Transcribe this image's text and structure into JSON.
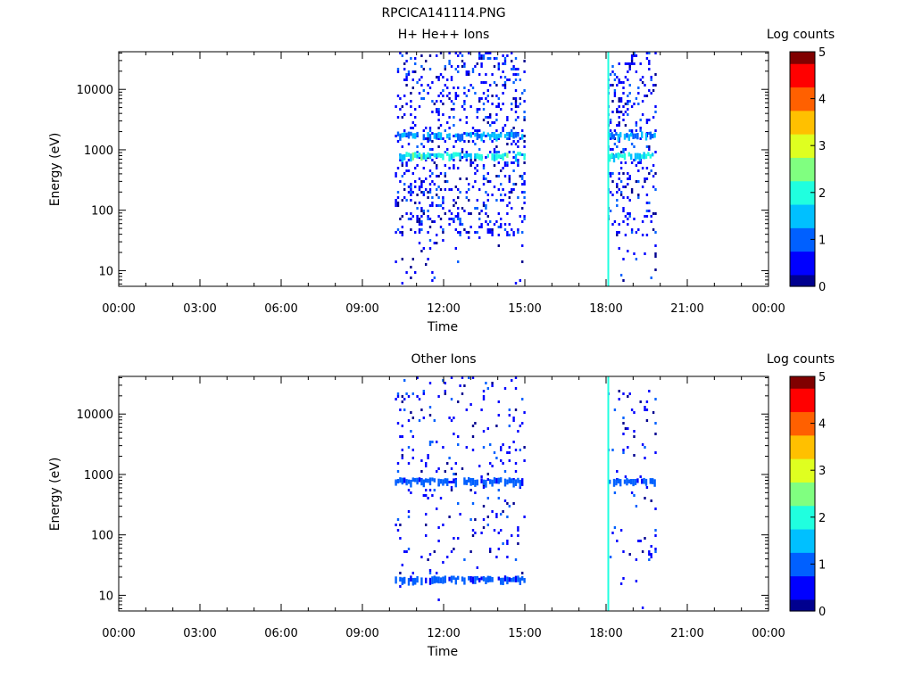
{
  "figure_title": "RPCICA141114.PNG",
  "colors": {
    "colormap": [
      "#00008f",
      "#0000ff",
      "#0060ff",
      "#00c0ff",
      "#20ffdf",
      "#80ff80",
      "#dfff20",
      "#ffc000",
      "#ff6000",
      "#ff0000",
      "#800000"
    ],
    "axes": "#000000",
    "background": "#ffffff"
  },
  "chart_data": [
    {
      "type": "heatmap",
      "title": "H+ He++ Ions",
      "xlabel": "Time",
      "ylabel": "Energy (eV)",
      "x_ticks": [
        "00:00",
        "03:00",
        "06:00",
        "09:00",
        "12:00",
        "15:00",
        "18:00",
        "21:00",
        "00:00"
      ],
      "xlim_hours": [
        0,
        24
      ],
      "y_ticks": [
        "10",
        "100",
        "1000",
        "10000"
      ],
      "y_scale": "log",
      "ylim_eV": [
        5.5,
        42000
      ],
      "colorbar": {
        "label": "Log counts",
        "ticks": [
          "0",
          "1",
          "2",
          "3",
          "4",
          "5"
        ],
        "range": [
          0,
          5
        ]
      },
      "data_intervals_hours": [
        [
          10.2,
          14.95
        ],
        [
          18.05,
          19.85
        ]
      ],
      "bands": [
        {
          "energy_eV": 1700,
          "level": 1.4,
          "intervals_hours": [
            [
              10.2,
              14.95
            ],
            [
              18.1,
              19.8
            ]
          ]
        },
        {
          "energy_eV": 780,
          "level": 1.9,
          "intervals_hours": [
            [
              10.2,
              14.95
            ],
            [
              18.1,
              19.8
            ]
          ]
        }
      ],
      "spikes": [
        {
          "time_hours": 18.05,
          "level": 1.8,
          "energy_range_eV": [
            5.5,
            42000
          ]
        }
      ],
      "scatter_density": 0.16
    },
    {
      "type": "heatmap",
      "title": "Other Ions",
      "xlabel": "Time",
      "ylabel": "Energy (eV)",
      "x_ticks": [
        "00:00",
        "03:00",
        "06:00",
        "09:00",
        "12:00",
        "15:00",
        "18:00",
        "21:00",
        "00:00"
      ],
      "xlim_hours": [
        0,
        24
      ],
      "y_ticks": [
        "10",
        "100",
        "1000",
        "10000"
      ],
      "y_scale": "log",
      "ylim_eV": [
        5.5,
        42000
      ],
      "colorbar": {
        "label": "Log counts",
        "ticks": [
          "0",
          "1",
          "2",
          "3",
          "4",
          "5"
        ],
        "range": [
          0,
          5
        ]
      },
      "data_intervals_hours": [
        [
          10.2,
          14.95
        ],
        [
          18.05,
          19.85
        ]
      ],
      "bands": [
        {
          "energy_eV": 760,
          "level": 1.0,
          "intervals_hours": [
            [
              10.2,
              14.95
            ],
            [
              18.1,
              19.8
            ]
          ]
        },
        {
          "energy_eV": 18,
          "level": 0.9,
          "intervals_hours": [
            [
              10.2,
              14.95
            ]
          ]
        }
      ],
      "spikes": [
        {
          "time_hours": 18.05,
          "level": 1.8,
          "energy_range_eV": [
            5.5,
            42000
          ]
        }
      ],
      "scatter_density": 0.05
    }
  ]
}
